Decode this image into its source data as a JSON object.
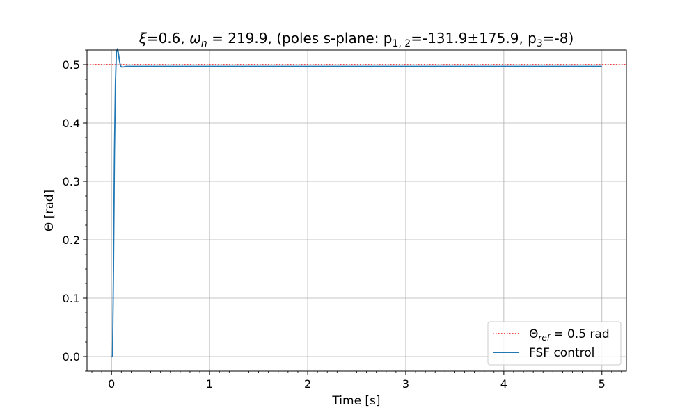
{
  "chart_data": {
    "type": "line",
    "title": {
      "xi_sym": "ξ",
      "xi_val": "=0.6, ",
      "omega_sym": "ω",
      "omega_sub": "n",
      "omega_val": " = 219.9, ",
      "poles_pre": "(poles s-plane: p",
      "p12_sub": "1, 2",
      "p12_val": "=-131.9±175.9,  p",
      "p3_sub": "3",
      "p3_val": "=-8)"
    },
    "xlabel": "Time [s]",
    "ylabel": "Θ [rad]",
    "xlim": [
      -0.25,
      5.25
    ],
    "ylim": [
      -0.025,
      0.525
    ],
    "xticks": [
      0,
      1,
      2,
      3,
      4,
      5
    ],
    "xtick_labels": [
      "0",
      "1",
      "2",
      "3",
      "4",
      "5"
    ],
    "yticks": [
      0.0,
      0.1,
      0.2,
      0.3,
      0.4,
      0.5
    ],
    "ytick_labels": [
      "0.0",
      "0.1",
      "0.2",
      "0.3",
      "0.4",
      "0.5"
    ],
    "grid": true,
    "legend_position": "lower-right",
    "reference": {
      "y": 0.5,
      "color": "#ff0000",
      "style": "dotted",
      "legend_main": "Θ",
      "legend_sub": "ref",
      "legend_rest": " = 0.5 rad"
    },
    "series": [
      {
        "name": "FSF control",
        "color": "#1f77b4",
        "x": [
          0,
          0.01,
          0.02,
          0.03,
          0.04,
          0.05,
          0.06,
          0.07,
          0.08,
          0.09,
          0.1,
          0.12,
          0.15,
          0.2,
          0.3,
          1.0,
          2.0,
          3.0,
          4.0,
          5.0
        ],
        "y": [
          0.0,
          0.0,
          0.15,
          0.35,
          0.47,
          0.52,
          0.527,
          0.52,
          0.508,
          0.499,
          0.496,
          0.496,
          0.497,
          0.497,
          0.497,
          0.497,
          0.497,
          0.497,
          0.497,
          0.497
        ]
      }
    ]
  }
}
